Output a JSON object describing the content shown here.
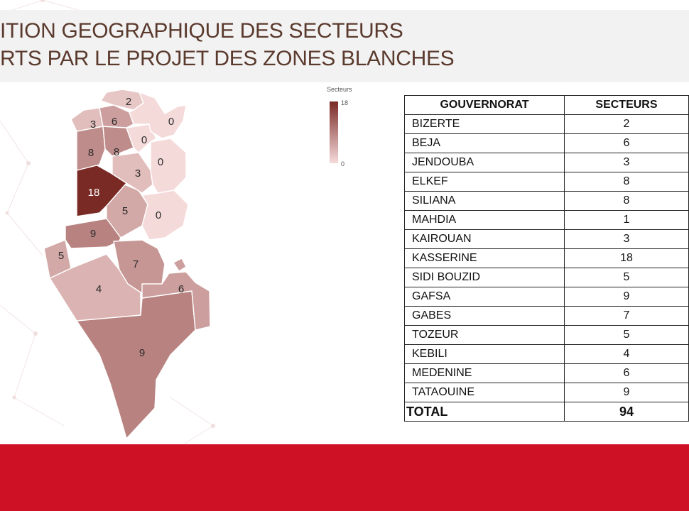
{
  "title": {
    "line1": "ITION GEOGRAPHIQUE DES SECTEURS",
    "line2": "RTS PAR LE PROJET DES ZONES BLANCHES"
  },
  "legend": {
    "title": "Secteurs",
    "max": "18",
    "min": "0"
  },
  "colors": {
    "legend_max": "#7a2a25",
    "legend_min": "#f5dada",
    "footer": "#cf1125",
    "title": "#5b3a2e"
  },
  "map_labels": {
    "bizerte": "2",
    "beja": "6",
    "jendouba": "3",
    "elkef": "8",
    "siliana": "8",
    "kasserine": "18",
    "sidibouzid": "5",
    "gafsa": "9",
    "tozeur": "5",
    "gabes": "7",
    "kebili": "4",
    "medenine": "6",
    "tataouine": "9",
    "kairouan": "3",
    "nabeul": "0",
    "zaghouan": "0",
    "sousse": "0",
    "sfax": "0"
  },
  "table": {
    "headers": [
      "GOUVERNORAT",
      "SECTEURS"
    ],
    "rows": [
      {
        "gov": "BIZERTE",
        "sec": "2"
      },
      {
        "gov": "BEJA",
        "sec": "6"
      },
      {
        "gov": "JENDOUBA",
        "sec": "3"
      },
      {
        "gov": "ELKEF",
        "sec": "8"
      },
      {
        "gov": "SILIANA",
        "sec": "8"
      },
      {
        "gov": "MAHDIA",
        "sec": "1"
      },
      {
        "gov": "KAIROUAN",
        "sec": "3"
      },
      {
        "gov": "KASSERINE",
        "sec": "18"
      },
      {
        "gov": "SIDI BOUZID",
        "sec": "5"
      },
      {
        "gov": "GAFSA",
        "sec": "9"
      },
      {
        "gov": "GABES",
        "sec": "7"
      },
      {
        "gov": "TOZEUR",
        "sec": "5"
      },
      {
        "gov": "KEBILI",
        "sec": "4"
      },
      {
        "gov": "MEDENINE",
        "sec": "6"
      },
      {
        "gov": "TATAOUINE",
        "sec": "9"
      }
    ],
    "total": {
      "label": "TOTAL",
      "value": "94"
    }
  }
}
